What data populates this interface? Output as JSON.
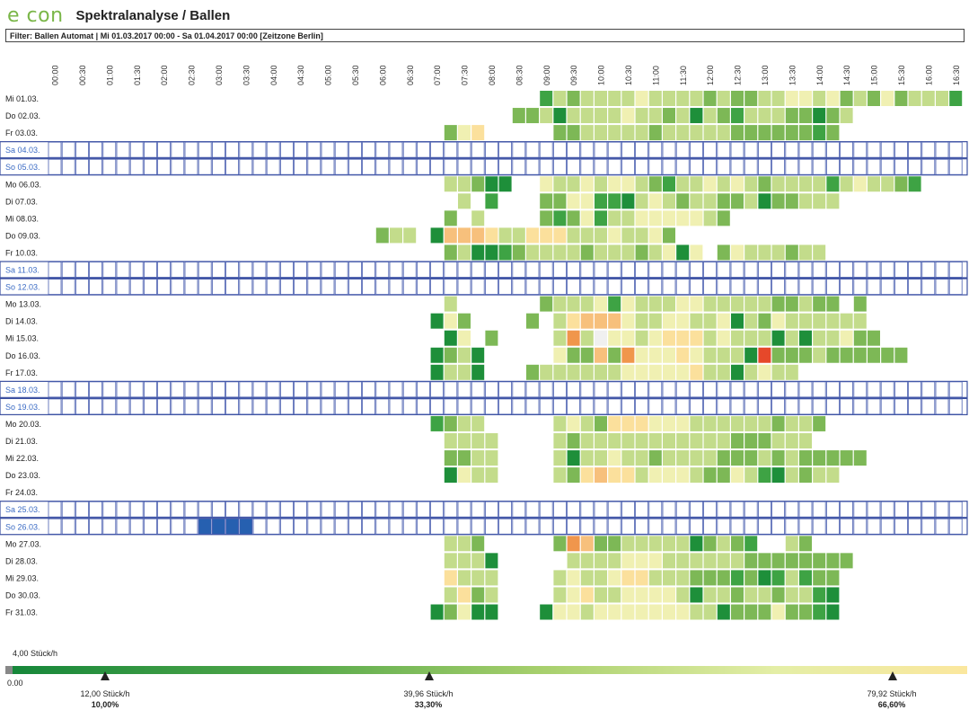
{
  "app": {
    "logo": "e con",
    "title": "Spektralanalyse / Ballen"
  },
  "filter": "Filter: Ballen Automat | Mi 01.03.2017 00:00 - Sa 01.04.2017 00:00 [Zeitzone Berlin]",
  "chart_data": {
    "type": "heatmap",
    "times": [
      "00:00",
      "00:30",
      "01:00",
      "01:30",
      "02:00",
      "02:30",
      "03:00",
      "03:30",
      "04:00",
      "04:30",
      "05:00",
      "05:30",
      "06:00",
      "06:30",
      "07:00",
      "07:30",
      "08:00",
      "08:30",
      "09:00",
      "09:30",
      "10:00",
      "10:30",
      "11:00",
      "11:30",
      "12:00",
      "12:30",
      "13:00",
      "13:30",
      "14:00",
      "14:30",
      "15:00",
      "15:30",
      "16:00",
      "16:30"
    ],
    "days": [
      {
        "label": "Mi 01.03.",
        "weekend": false,
        "cells": "0000000000000000000000000000000000002434444544443433445545343534442"
      },
      {
        "label": "Do 02.03.",
        "weekend": false,
        "cells": "0000000000000000000000000000000000334144445443414324443313400000000"
      },
      {
        "label": "Fr 03.03.",
        "weekend": false,
        "cells": "0000000000000000000000000000035600000334444434444433333323000000000"
      },
      {
        "label": "Sa 04.03.",
        "weekend": true,
        "cells": ""
      },
      {
        "label": "So 05.03.",
        "weekend": true,
        "cells": ""
      },
      {
        "label": "Mo 06.03.",
        "weekend": false,
        "cells": "0000000000000000000000000000044311005445455432445454344442454432000"
      },
      {
        "label": "Di 07.03.",
        "weekend": false,
        "cells": "0000000000000000000000000000004020003355221454344334133444000000000"
      },
      {
        "label": "Mi 08.03.",
        "weekend": false,
        "cells": "0000000000000000000000000000030400003235244555554300000000000000000"
      },
      {
        "label": "Do 09.03.",
        "weekend": false,
        "cells": "0000000000000000000000003440177764466644454453000000000000000000000"
      },
      {
        "label": "Fr 10.03.",
        "weekend": false,
        "cells": "0000000000000000000000000000034112344443444345150354443440000000000"
      },
      {
        "label": "Sa 11.03.",
        "weekend": true,
        "cells": ""
      },
      {
        "label": "So 12.03.",
        "weekend": true,
        "cells": ""
      },
      {
        "label": "Mo 13.03.",
        "weekend": false,
        "cells": "0000000000000000000000000000040000003444525444554444433433030000000"
      },
      {
        "label": "Di 14.03.",
        "weekend": false,
        "cells": "0000000000000000000000000000153000030467775445544514354444440000000"
      },
      {
        "label": "Mi 15.03.",
        "weekend": false,
        "cells": "0000000000000000000000000000015030000484A55456664544414144533000000"
      },
      {
        "label": "Do 16.03.",
        "weekend": false,
        "cells": "0000000000000000000000000000134100000533738555654441B3334333333000"
      },
      {
        "label": "Fr 17.03.",
        "weekend": false,
        "cells": "0000000000000000000000000000144100034444445555564414544000000000000"
      },
      {
        "label": "Sa 18.03.",
        "weekend": true,
        "cells": ""
      },
      {
        "label": "So 19.03.",
        "weekend": true,
        "cells": ""
      },
      {
        "label": "Mo 20.03.",
        "weekend": false,
        "cells": "0000000000000000000000000000234400000454366655544444434430000000000"
      },
      {
        "label": "Di 21.03.",
        "weekend": false,
        "cells": "0000000000000000000000000000044440000434444444444433344400000000000"
      },
      {
        "label": "Mi 22.03.",
        "weekend": false,
        "cells": "0000000000000000000000000000033440000414454434444333434333330000000"
      },
      {
        "label": "Do 23.03.",
        "weekend": false,
        "cells": "0000000000000000000000000000015440000436766455543354214344000000000"
      },
      {
        "label": "Fr 24.03.",
        "weekend": false,
        "cells": ""
      },
      {
        "label": "Sa 25.03.",
        "weekend": true,
        "cells": ""
      },
      {
        "label": "So 26.03.",
        "weekend": true,
        "cells": "00000000000CCCC"
      },
      {
        "label": "Mo 27.03.",
        "weekend": false,
        "cells": "0000000000000000000000000000044300000387334444413432004300000000000"
      },
      {
        "label": "Di 28.03.",
        "weekend": false,
        "cells": "0000000000000000000000000000044410000044445554444443333333300000000"
      },
      {
        "label": "Mi 29.03.",
        "weekend": false,
        "cells": "0000000000000000000000000000064440000454456644433323124233000000000"
      },
      {
        "label": "Do 30.03.",
        "weekend": false,
        "cells": "0000000000000000000000000000046340000456445555414434434421000000000"
      },
      {
        "label": "Fr 31.03.",
        "weekend": false,
        "cells": "0000000000000000000000000000135110001554555555544133353321000000000"
      }
    ],
    "color_scale": [
      "#ffffff",
      "#1e8f3a",
      "#3ea344",
      "#7db856",
      "#c3dc8b",
      "#f0f0b2",
      "#fbe09c",
      "#f7c07c",
      "#f0964c",
      "#e0272a",
      "#f0f0f0",
      "#e6482a",
      "#2660b0"
    ],
    "legend": {
      "min_label": "4,00 Stück/h",
      "zero_label": "0.00",
      "ticks": [
        {
          "value": "12,00 Stück/h",
          "pct": "10,00%"
        },
        {
          "value": "39,96 Stück/h",
          "pct": "33,30%"
        },
        {
          "value": "79,92 Stück/h",
          "pct": "66,60%"
        }
      ]
    }
  }
}
